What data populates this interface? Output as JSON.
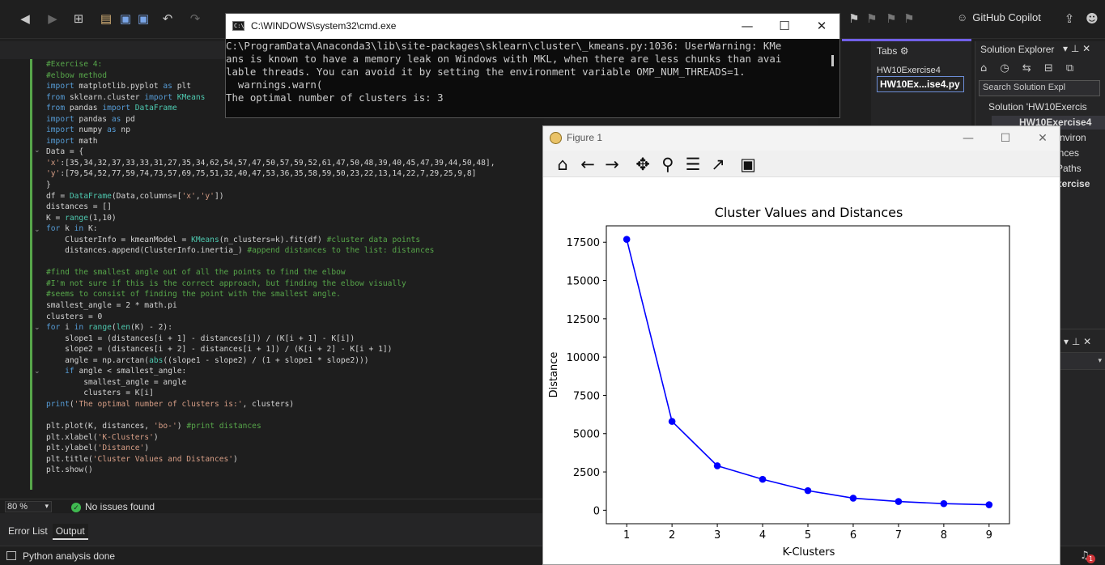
{
  "ide": {
    "copilot_label": "GitHub Copilot",
    "zoom": "80 %",
    "issues": "No issues found",
    "bottom_tabs": [
      "Error List",
      "Output"
    ],
    "status": "Python analysis done",
    "notification_count": "1"
  },
  "code_lines": [
    "#Exercise 4:",
    "#elbow method",
    "import matplotlib.pyplot as plt",
    "from sklearn.cluster import KMeans",
    "from pandas import DataFrame",
    "import pandas as pd",
    "import numpy as np",
    "import math",
    "Data = {",
    "'x':[35,34,32,37,33,33,31,27,35,34,62,54,57,47,50,57,59,52,61,47,50,48,39,40,45,47,39,44,50,48],",
    "'y':[79,54,52,77,59,74,73,57,69,75,51,32,40,47,53,36,35,58,59,50,23,22,13,14,22,7,29,25,9,8]",
    "}",
    "df = DataFrame(Data,columns=['x','y'])",
    "distances = []",
    "K = range(1,10)",
    "for k in K:",
    "    ClusterInfo = kmeanModel = KMeans(n_clusters=k).fit(df) #cluster data points",
    "    distances.append(ClusterInfo.inertia_) #append distances to the list: distances",
    "",
    "#find the smallest angle out of all the points to find the elbow",
    "#I'm not sure if this is the correct approach, but finding the elbow visually",
    "#seems to consist of finding the point with the smallest angle.",
    "smallest_angle = 2 * math.pi",
    "clusters = 0",
    "for i in range(len(K) - 2):",
    "    slope1 = (distances[i + 1] - distances[i]) / (K[i + 1] - K[i])",
    "    slope2 = (distances[i + 2] - distances[i + 1]) / (K[i + 2] - K[i + 1])",
    "    angle = np.arctan(abs((slope1 - slope2) / (1 + slope1 * slope2)))",
    "    if angle < smallest_angle:",
    "        smallest_angle = angle",
    "        clusters = K[i]",
    "print('The optimal number of clusters is:', clusters)",
    "",
    "plt.plot(K, distances, 'bo-') #print distances",
    "plt.xlabel('K-Clusters')",
    "plt.ylabel('Distance')",
    "plt.title('Cluster Values and Distances')",
    "plt.show()"
  ],
  "cmd": {
    "title": "C:\\WINDOWS\\system32\\cmd.exe",
    "lines": [
      "C:\\ProgramData\\Anaconda3\\lib\\site-packages\\sklearn\\cluster\\_kmeans.py:1036: UserWarning: KMe",
      "ans is known to have a memory leak on Windows with MKL, when there are less chunks than avai",
      "lable threads. You can avoid it by setting the environment variable OMP_NUM_THREADS=1.",
      "  warnings.warn(",
      "The optimal number of clusters is: 3"
    ]
  },
  "tabs_panel": {
    "title": "Tabs",
    "items": [
      "HW10Exercise4",
      "HW10Ex...ise4.py"
    ]
  },
  "solution_explorer": {
    "title": "Solution Explorer",
    "search_placeholder": "Search Solution Expl",
    "items": [
      "Solution 'HW10Exercis",
      "HW10Exercise4",
      "n Environ",
      "ences",
      "Paths",
      "Exercise"
    ]
  },
  "figure": {
    "title": "Figure 1",
    "tools": [
      "home-icon",
      "back-icon",
      "forward-icon",
      "pan-icon",
      "zoom-icon",
      "subplots-icon",
      "customize-icon",
      "save-icon"
    ]
  },
  "chart_data": {
    "type": "line",
    "title": "Cluster Values and Distances",
    "xlabel": "K-Clusters",
    "ylabel": "Distance",
    "x": [
      1,
      2,
      3,
      4,
      5,
      6,
      7,
      8,
      9
    ],
    "series": [
      {
        "values": [
          17690,
          5800,
          2900,
          2020,
          1280,
          790,
          570,
          430,
          360
        ],
        "color": "#0000ff",
        "marker": "o"
      }
    ],
    "xticks": [
      1,
      2,
      3,
      4,
      5,
      6,
      7,
      8,
      9
    ],
    "yticks": [
      0,
      2500,
      5000,
      7500,
      10000,
      12500,
      15000,
      17500
    ],
    "xlim": [
      0.55,
      9.45
    ],
    "ylim": [
      -880,
      18570
    ],
    "grid": false
  }
}
